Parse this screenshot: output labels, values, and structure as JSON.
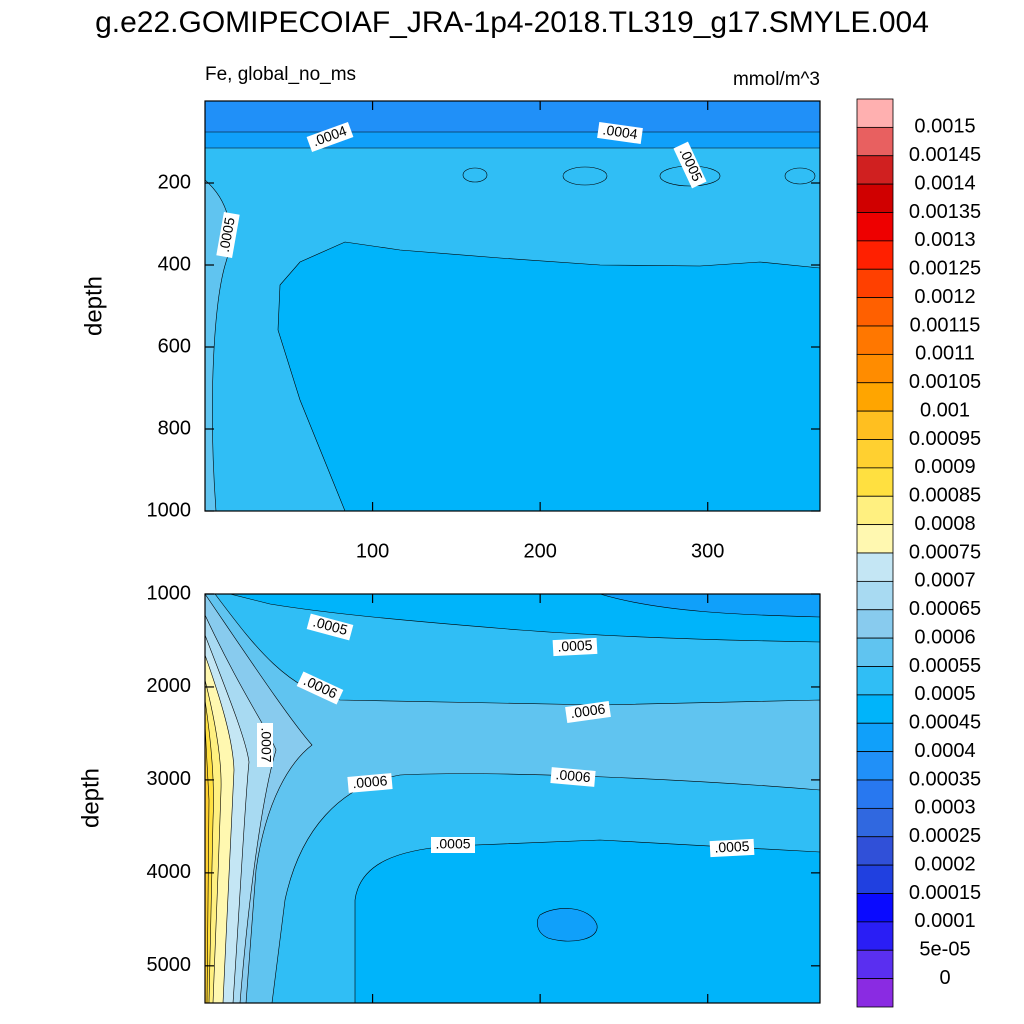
{
  "title": "g.e22.GOMIPECOIAF_JRA-1p4-2018.TL319_g17.SMYLE.004",
  "chart_data": [
    {
      "type": "contour",
      "subtitle": "Fe, global_no_ms",
      "units": "mmol/m^3",
      "y_label": "depth",
      "xlim": [
        0,
        367
      ],
      "xticks": [
        100,
        200,
        300
      ],
      "show_xtick_labels": true,
      "ylim": [
        1000,
        0
      ],
      "yticks": [
        200,
        400,
        600,
        800,
        1000
      ],
      "contour_labels": [
        {
          "value": 0.0004,
          "label": ".0004"
        },
        {
          "value": 0.0004,
          "label": ".0004"
        },
        {
          "value": 0.0005,
          "label": ".0005"
        },
        {
          "value": 0.0005,
          "label": ".0005"
        }
      ]
    },
    {
      "type": "contour",
      "y_label": "depth",
      "xlim": [
        0,
        367
      ],
      "xticks": [
        100,
        200,
        300
      ],
      "show_xtick_labels": false,
      "ylim": [
        5400,
        1000
      ],
      "yticks": [
        1000,
        2000,
        3000,
        4000,
        5000
      ],
      "contour_labels": [
        {
          "value": 0.0005,
          "label": ".0005"
        },
        {
          "value": 0.0005,
          "label": ".0005"
        },
        {
          "value": 0.0006,
          "label": ".0006"
        },
        {
          "value": 0.0006,
          "label": ".0006"
        },
        {
          "value": 0.0007,
          "label": ".0007"
        },
        {
          "value": 0.0006,
          "label": ".0006"
        },
        {
          "value": 0.0006,
          "label": ".0006"
        },
        {
          "value": 0.0005,
          "label": ".0005"
        },
        {
          "value": 0.0005,
          "label": ".0005"
        }
      ]
    }
  ],
  "colorbar": {
    "levels": [
      0.0015,
      0.00145,
      0.0014,
      0.00135,
      0.0013,
      0.00125,
      0.0012,
      0.00115,
      0.0011,
      0.00105,
      0.001,
      0.00095,
      0.0009,
      0.00085,
      0.0008,
      0.00075,
      0.0007,
      0.00065,
      0.0006,
      0.00055,
      0.0005,
      0.00045,
      0.0004,
      0.00035,
      0.0003,
      0.00025,
      0.0002,
      0.00015,
      0.0001,
      {
        "value": 5e-05,
        "label": "5e-05"
      },
      0
    ],
    "colors": [
      "#ffb0b0",
      "#e86060",
      "#d02020",
      "#d00000",
      "#ee0000",
      "#ff2000",
      "#ff4000",
      "#ff6000",
      "#ff7700",
      "#ff8c00",
      "#ffa500",
      "#ffbf20",
      "#ffd030",
      "#ffe040",
      "#fff080",
      "#fff8b0",
      "#c4e6f4",
      "#a8daf2",
      "#88cbee",
      "#60c4f0",
      "#30bef5",
      "#00b4fa",
      "#10a0fa",
      "#2090f8",
      "#2878f0",
      "#3068e0",
      "#3050d8",
      "#2040e0",
      "#0a0aff",
      "#2a1ef5",
      "#5a2ff0",
      "#8a2be2"
    ]
  }
}
